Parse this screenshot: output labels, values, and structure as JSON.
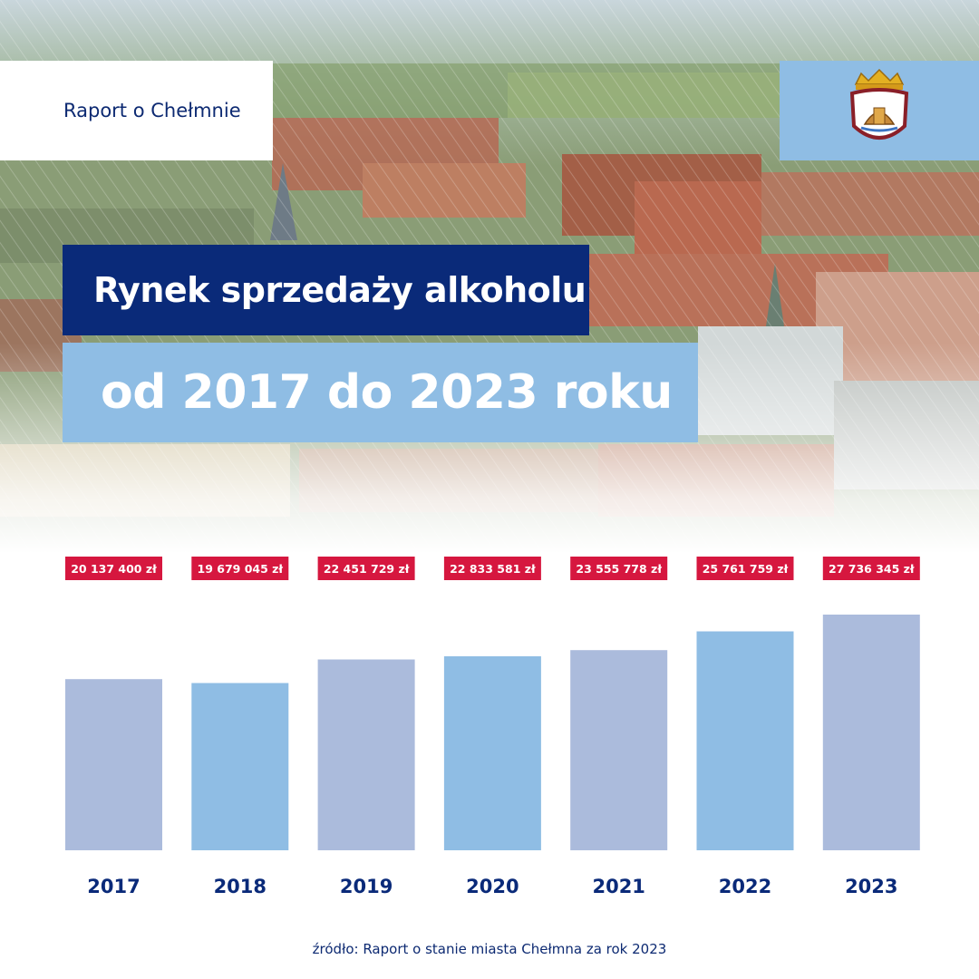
{
  "header": {
    "brand_label": "Raport o Chełmnie",
    "title_line1": "Rynek sprzedaży alkoholu",
    "title_line2": "od 2017 do 2023 roku",
    "crest_icon": "city-coat-of-arms-icon"
  },
  "colors": {
    "navy": "#0a2a79",
    "light_blue": "#8fbde4",
    "lavender": "#abbbdc",
    "label_red": "#d6173f"
  },
  "chart_data": {
    "type": "bar",
    "categories": [
      "2017",
      "2018",
      "2019",
      "2020",
      "2021",
      "2022",
      "2023"
    ],
    "values": [
      20137400,
      19679045,
      22451729,
      22833581,
      23555778,
      25761759,
      27736345
    ],
    "value_labels": [
      "20 137 400 zł",
      "19 679 045 zł",
      "22 451 729 zł",
      "22 833 581 zł",
      "23 555 778 zł",
      "25 761 759 zł",
      "27 736 345 zł"
    ],
    "bar_colors": [
      "#abbbdc",
      "#8fbde4",
      "#abbbdc",
      "#8fbde4",
      "#abbbdc",
      "#8fbde4",
      "#abbbdc"
    ],
    "grid": false
  },
  "footer": {
    "source": "źródło: Raport o stanie miasta Chełmna za rok 2023"
  }
}
